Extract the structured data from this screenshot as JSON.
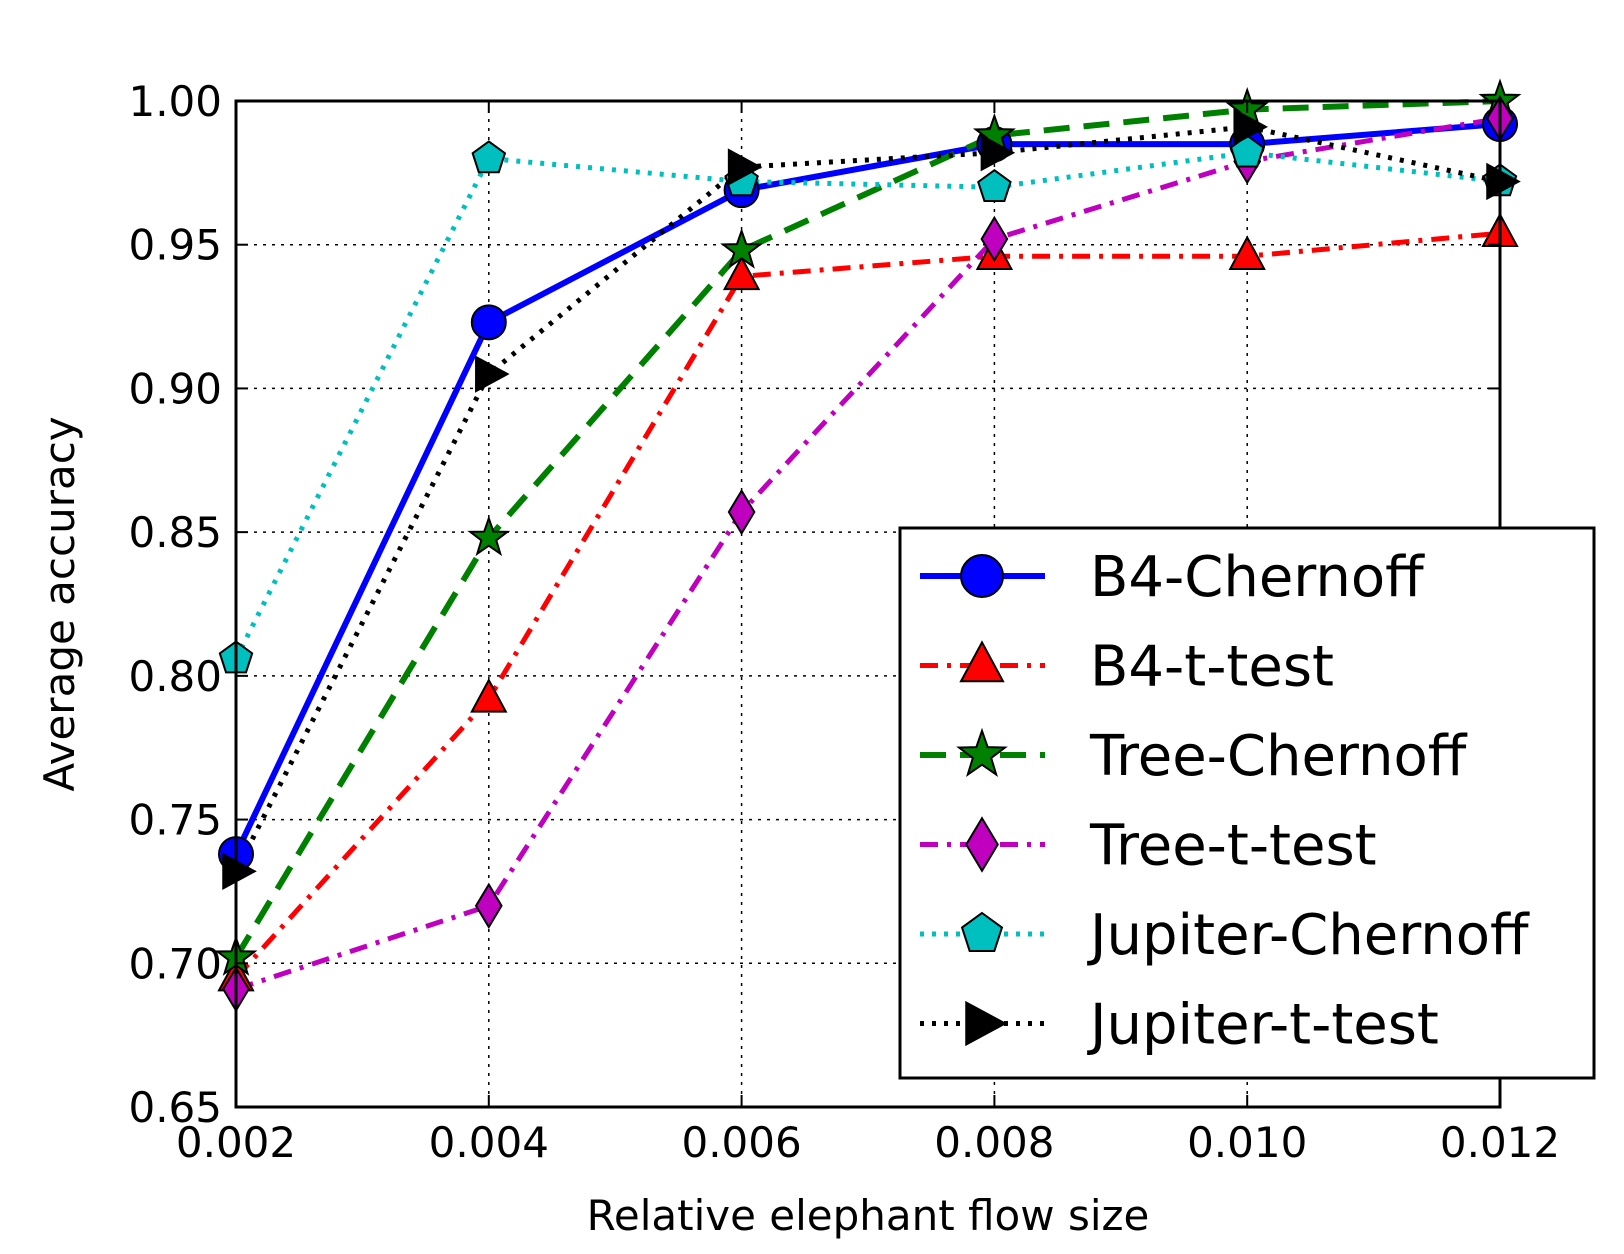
{
  "chart_data": {
    "type": "line",
    "title": "",
    "xlabel": "Relative elephant flow size",
    "ylabel": "Average accuracy",
    "xlim": [
      0.002,
      0.012
    ],
    "ylim": [
      0.65,
      1.0
    ],
    "x_ticks": [
      "0.002",
      "0.004",
      "0.006",
      "0.008",
      "0.010",
      "0.012"
    ],
    "y_ticks": [
      "0.65",
      "0.70",
      "0.75",
      "0.80",
      "0.85",
      "0.90",
      "0.95",
      "1.00"
    ],
    "grid": true,
    "legend_position": "lower-right",
    "x": [
      0.002,
      0.004,
      0.006,
      0.008,
      0.01,
      0.012
    ],
    "series": [
      {
        "name": "B4-Chernoff",
        "values": [
          0.738,
          0.923,
          0.969,
          0.985,
          0.985,
          0.992
        ],
        "color": "#0000ff",
        "style": "solid",
        "marker": "circle"
      },
      {
        "name": "B4-t-test",
        "values": [
          0.695,
          0.792,
          0.939,
          0.946,
          0.946,
          0.954
        ],
        "color": "#ff0000",
        "style": "dashdot",
        "marker": "triangle-up"
      },
      {
        "name": "Tree-Chernoff",
        "values": [
          0.702,
          0.848,
          0.948,
          0.988,
          0.997,
          1.0
        ],
        "color": "#008000",
        "style": "dashed",
        "marker": "star"
      },
      {
        "name": "Tree-t-test",
        "values": [
          0.691,
          0.72,
          0.857,
          0.952,
          0.979,
          0.994
        ],
        "color": "#bf00bf",
        "style": "dashdot",
        "marker": "diamond"
      },
      {
        "name": "Jupiter-Chernoff",
        "values": [
          0.806,
          0.98,
          0.972,
          0.97,
          0.982,
          0.972
        ],
        "color": "#00bfbf",
        "style": "dotted",
        "marker": "pentagon"
      },
      {
        "name": "Jupiter-t-test",
        "values": [
          0.732,
          0.905,
          0.977,
          0.982,
          0.991,
          0.972
        ],
        "color": "#000000",
        "style": "dotted",
        "marker": "triangle-right"
      }
    ]
  }
}
